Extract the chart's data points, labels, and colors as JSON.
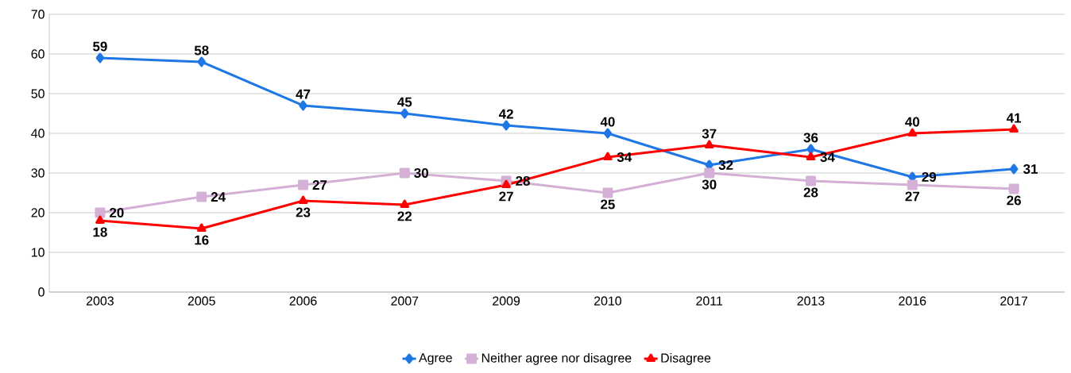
{
  "chart_data": {
    "type": "line",
    "categories": [
      "2003",
      "2005",
      "2006",
      "2007",
      "2009",
      "2010",
      "2011",
      "2013",
      "2016",
      "2017"
    ],
    "series": [
      {
        "name": "Agree",
        "color": "#1f77e6",
        "marker": "diamond",
        "values": [
          59,
          58,
          47,
          45,
          42,
          40,
          32,
          36,
          29,
          31
        ]
      },
      {
        "name": "Neither agree nor disagree",
        "color": "#d4b0d6",
        "marker": "square",
        "values": [
          20,
          24,
          27,
          30,
          28,
          25,
          30,
          28,
          27,
          26
        ]
      },
      {
        "name": "Disagree",
        "color": "#ff0000",
        "marker": "triangle",
        "values": [
          18,
          16,
          23,
          22,
          27,
          34,
          37,
          34,
          40,
          41
        ]
      }
    ],
    "ylim": [
      0,
      70
    ],
    "yticks": [
      0,
      10,
      20,
      30,
      40,
      50,
      60,
      70
    ],
    "grid": "y",
    "legend": "bottom",
    "data_labels": true
  }
}
